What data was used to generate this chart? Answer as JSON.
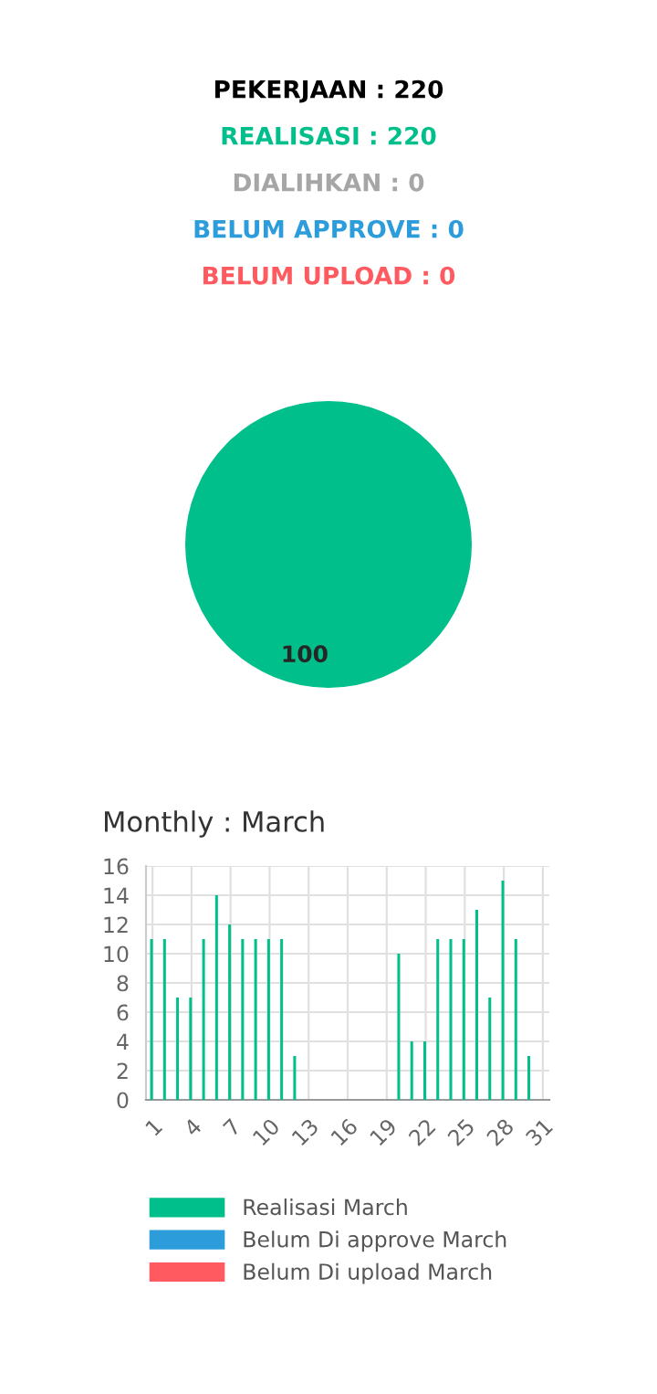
{
  "chart_data": [
    {
      "type": "pie",
      "title": "PEKERJAAN : 220",
      "annotations": [
        "REALISASI : 220",
        "DIALIHKAN : 0",
        "BELUM APPROVE : 0",
        "BELUM UPLOAD : 0"
      ],
      "categories": [
        null
      ],
      "values": [
        100
      ],
      "colors": [
        "#00bf8a"
      ],
      "data_labels": true
    },
    {
      "type": "bar",
      "title": "Monthly : March",
      "categories": [
        "1",
        null,
        null,
        "4",
        null,
        null,
        "7",
        null,
        null,
        "10",
        null,
        null,
        "13",
        null,
        null,
        "16",
        null,
        null,
        "19",
        null,
        null,
        "22",
        null,
        null,
        "25",
        null,
        null,
        "28",
        null,
        null,
        "31"
      ],
      "series": [
        {
          "name": "Realisasi March",
          "color": "#00bf8a",
          "values": [
            11,
            11,
            7,
            7,
            11,
            14,
            12,
            11,
            11,
            11,
            11,
            3,
            0,
            0,
            0,
            0,
            0,
            0,
            0,
            10,
            4,
            4,
            11,
            11,
            11,
            13,
            7,
            15,
            11,
            3,
            0
          ]
        },
        {
          "name": "Belum Di approve March",
          "color": "#2d9cdb",
          "values": [
            0,
            0,
            0,
            0,
            0,
            0,
            0,
            0,
            0,
            0,
            0,
            0,
            0,
            0,
            0,
            0,
            0,
            0,
            0,
            0,
            0,
            0,
            0,
            0,
            0,
            0,
            0,
            0,
            0,
            0,
            0
          ]
        },
        {
          "name": "Belum Di upload March",
          "color": "#ff5a5f",
          "values": [
            0,
            0,
            0,
            0,
            0,
            0,
            0,
            0,
            0,
            0,
            0,
            0,
            0,
            0,
            0,
            0,
            0,
            0,
            0,
            0,
            0,
            0,
            0,
            0,
            0,
            0,
            0,
            0,
            0,
            0,
            0
          ]
        }
      ],
      "ylim": [
        0,
        16
      ],
      "yticks": [
        0,
        2,
        4,
        6,
        8,
        10,
        12,
        14,
        16
      ],
      "grid": true,
      "legend": "bottom"
    }
  ]
}
